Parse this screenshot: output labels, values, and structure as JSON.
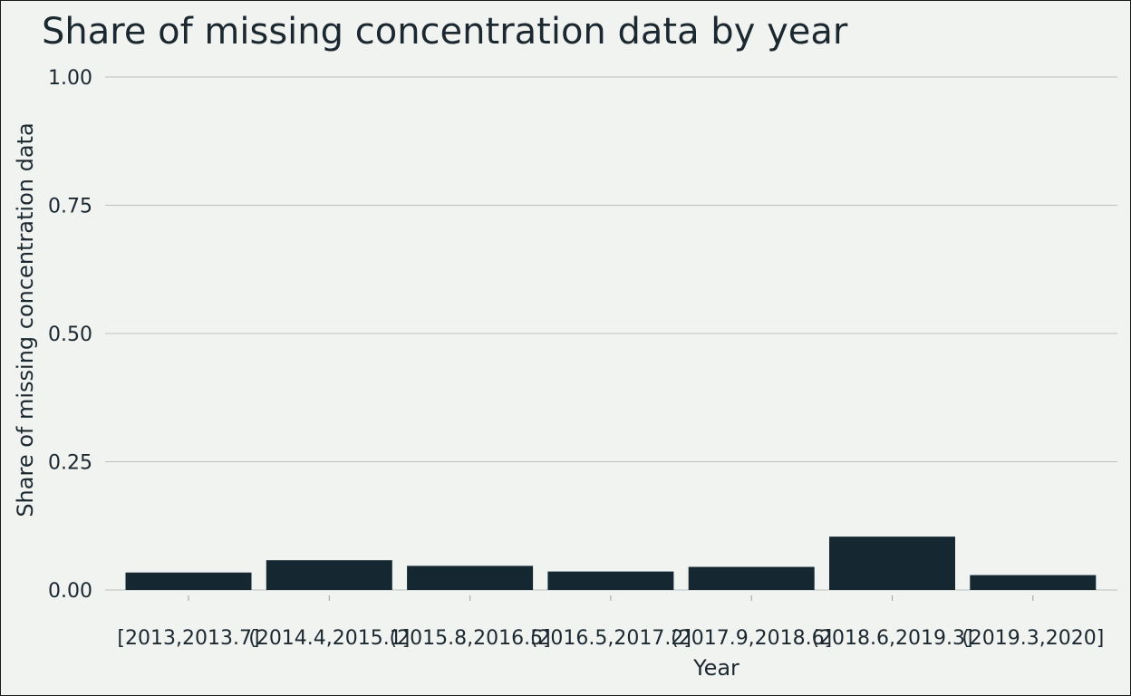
{
  "chart_data": {
    "type": "bar",
    "title": "Share of missing concentration data by year",
    "xlabel": "Year",
    "ylabel": "Share of missing concentration data",
    "categories": [
      "[2013,2013.7]",
      "(2014.4,2015.1]",
      "(2015.8,2016.5]",
      "(2016.5,2017.2]",
      "(2017.9,2018.6]",
      "(2018.6,2019.3]",
      "(2019.3,2020]"
    ],
    "values": [
      0.034,
      0.058,
      0.047,
      0.036,
      0.045,
      0.104,
      0.029
    ],
    "ylim": [
      0,
      1
    ],
    "yticks": [
      0,
      0.25,
      0.5,
      0.75,
      1.0
    ],
    "ytick_labels": [
      "0.00",
      "0.25",
      "0.50",
      "0.75",
      "1.00"
    ],
    "grid": true,
    "colors": {
      "bar": "#152832",
      "background": "#f1f3f1",
      "grid": "#bcc2c0",
      "text": "#1c2830"
    }
  }
}
